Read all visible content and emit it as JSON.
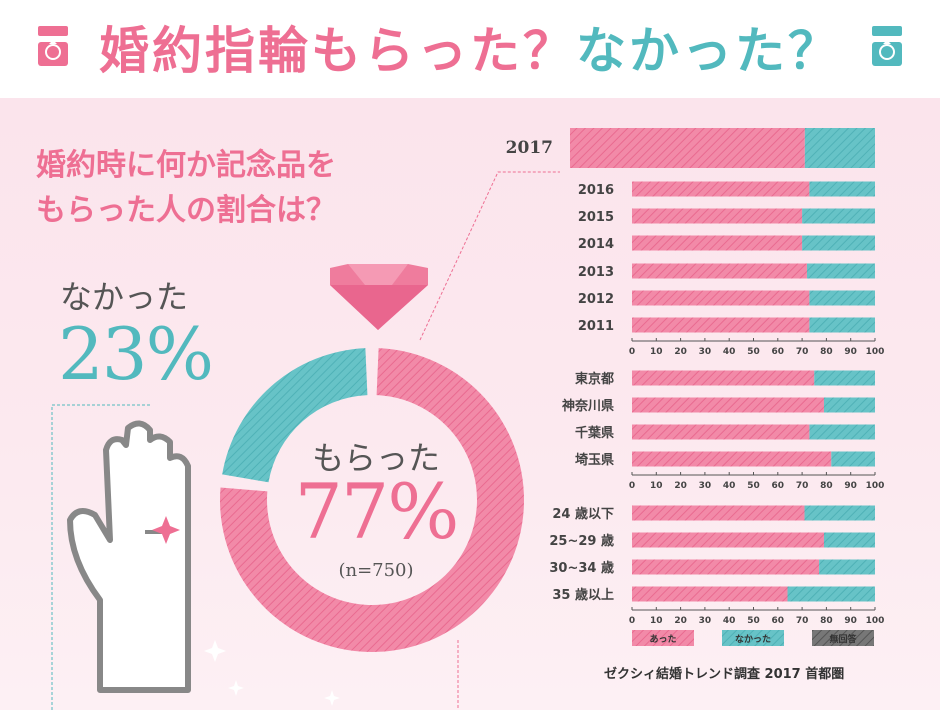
{
  "title": {
    "part1": "婚約指輪もらった？",
    "part2": "なかった？"
  },
  "question": {
    "line1": "婚約時に何か記念品を",
    "line2": "もらった人の割合は？"
  },
  "donut": {
    "nakatta_label": "なかった",
    "nakatta_pct": "23%",
    "moratta_label": "もらった",
    "moratta_pct": "77%",
    "n": "(n=750)"
  },
  "source": "ゼクシィ結婚トレンド調査 2017 首都圏",
  "colors": {
    "pink": "#ee6f93",
    "teal": "#52b9be",
    "gray": "#666666"
  },
  "chart_data": [
    {
      "type": "pie",
      "labels": [
        "もらった",
        "なかった"
      ],
      "values": [
        77,
        23
      ]
    },
    {
      "type": "bar",
      "orientation": "horizontal",
      "stacked": true,
      "categories": [
        "2017",
        "2016",
        "2015",
        "2014",
        "2013",
        "2012",
        "2011"
      ],
      "series": [
        {
          "name": "あった",
          "values": [
            77,
            73,
            70,
            70,
            72,
            73,
            73
          ]
        },
        {
          "name": "なかった",
          "values": [
            23,
            27,
            30,
            30,
            28,
            27,
            27
          ]
        }
      ],
      "xlim": [
        0,
        100
      ],
      "xticks": [
        "0",
        "10",
        "20",
        "30",
        "40",
        "50",
        "60",
        "70",
        "80",
        "90",
        "100"
      ]
    },
    {
      "type": "bar",
      "orientation": "horizontal",
      "stacked": true,
      "categories": [
        "東京都",
        "神奈川県",
        "千葉県",
        "埼玉県"
      ],
      "series": [
        {
          "name": "あった",
          "values": [
            75,
            79,
            73,
            82
          ]
        },
        {
          "name": "なかった",
          "values": [
            25,
            21,
            27,
            18
          ]
        }
      ],
      "xlim": [
        0,
        100
      ],
      "xticks": [
        "0",
        "10",
        "20",
        "30",
        "40",
        "50",
        "60",
        "70",
        "80",
        "90",
        "100"
      ]
    },
    {
      "type": "bar",
      "orientation": "horizontal",
      "stacked": true,
      "categories": [
        "24 歳以下",
        "25~29 歳",
        "30~34 歳",
        "35 歳以上"
      ],
      "series": [
        {
          "name": "あった",
          "values": [
            71,
            79,
            77,
            64
          ]
        },
        {
          "name": "なかった",
          "values": [
            29,
            21,
            23,
            36
          ]
        }
      ],
      "xlim": [
        0,
        100
      ],
      "xticks": [
        "0",
        "10",
        "20",
        "30",
        "40",
        "50",
        "60",
        "70",
        "80",
        "90",
        "100"
      ]
    }
  ],
  "legend": [
    "あった",
    "なかった",
    "無回答"
  ]
}
